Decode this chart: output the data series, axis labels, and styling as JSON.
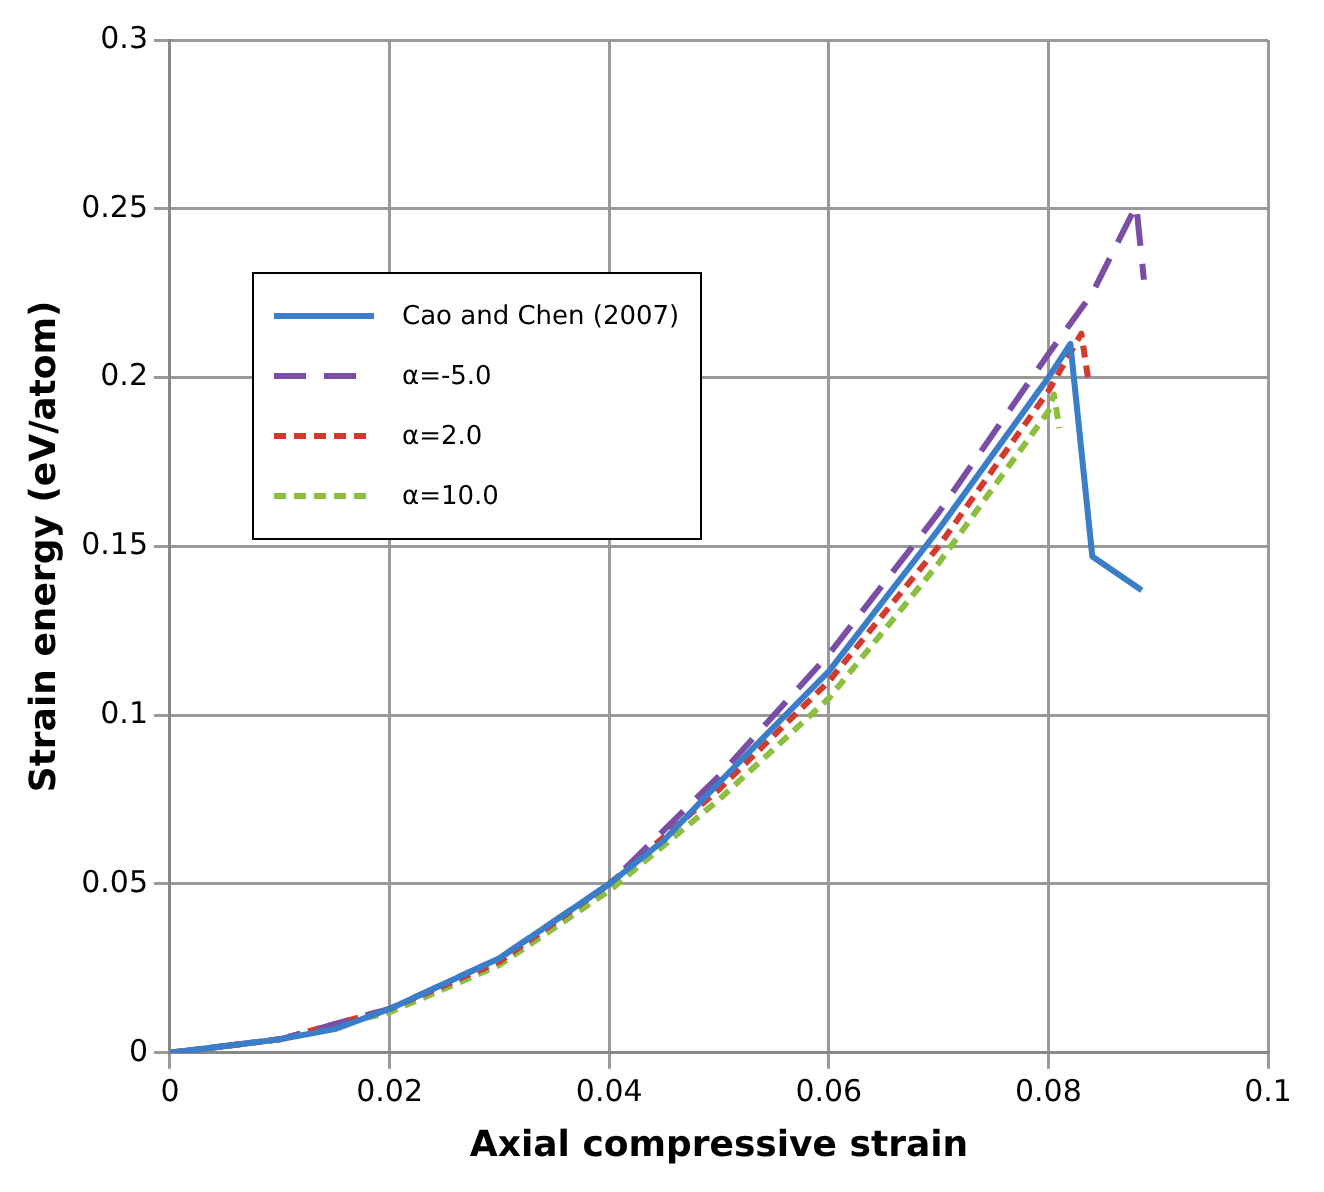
{
  "chart_data": {
    "type": "line",
    "xlabel": "Axial compressive strain",
    "ylabel": "Strain energy (eV/atom)",
    "xlim": [
      0,
      0.1
    ],
    "xticks": [
      0,
      0.02,
      0.04,
      0.06,
      0.08,
      0.1
    ],
    "ylim": [
      0,
      0.3
    ],
    "yticks": [
      0,
      0.05,
      0.1,
      0.15,
      0.2,
      0.25,
      0.3
    ],
    "grid": true,
    "legend": "top left",
    "marker": "none",
    "series": [
      {
        "name": "Cao and Chen (2007)",
        "color": "#3a7dc9",
        "line_style": "solid",
        "x": [
          0,
          0.005,
          0.01,
          0.015,
          0.02,
          0.03,
          0.04,
          0.045,
          0.05,
          0.06,
          0.07,
          0.08,
          0.082,
          0.084,
          0.0885
        ],
        "values": [
          0,
          0.002,
          0.004,
          0.007,
          0.013,
          0.028,
          0.05,
          0.063,
          0.08,
          0.113,
          0.155,
          0.2,
          0.21,
          0.147,
          0.137
        ]
      },
      {
        "name": "α=-5.0",
        "color": "#7b4ea6",
        "line_style": "dashed",
        "x": [
          0,
          0.01,
          0.02,
          0.03,
          0.04,
          0.05,
          0.06,
          0.07,
          0.08,
          0.084,
          0.088,
          0.0887
        ],
        "values": [
          0,
          0.004,
          0.013,
          0.028,
          0.05,
          0.082,
          0.118,
          0.16,
          0.207,
          0.225,
          0.251,
          0.229
        ]
      },
      {
        "name": "α=2.0",
        "color": "#d23a2e",
        "line_style": "dotted",
        "x": [
          0,
          0.01,
          0.02,
          0.03,
          0.04,
          0.05,
          0.06,
          0.07,
          0.08,
          0.083,
          0.0836
        ],
        "values": [
          0,
          0.004,
          0.013,
          0.027,
          0.05,
          0.078,
          0.11,
          0.15,
          0.196,
          0.213,
          0.2
        ]
      },
      {
        "name": "α=10.0",
        "color": "#8cbf3f",
        "line_style": "dotted",
        "x": [
          0,
          0.01,
          0.02,
          0.03,
          0.04,
          0.05,
          0.06,
          0.07,
          0.08,
          0.0805,
          0.081
        ],
        "values": [
          0,
          0.004,
          0.012,
          0.026,
          0.048,
          0.075,
          0.105,
          0.145,
          0.19,
          0.195,
          0.185
        ]
      }
    ]
  }
}
